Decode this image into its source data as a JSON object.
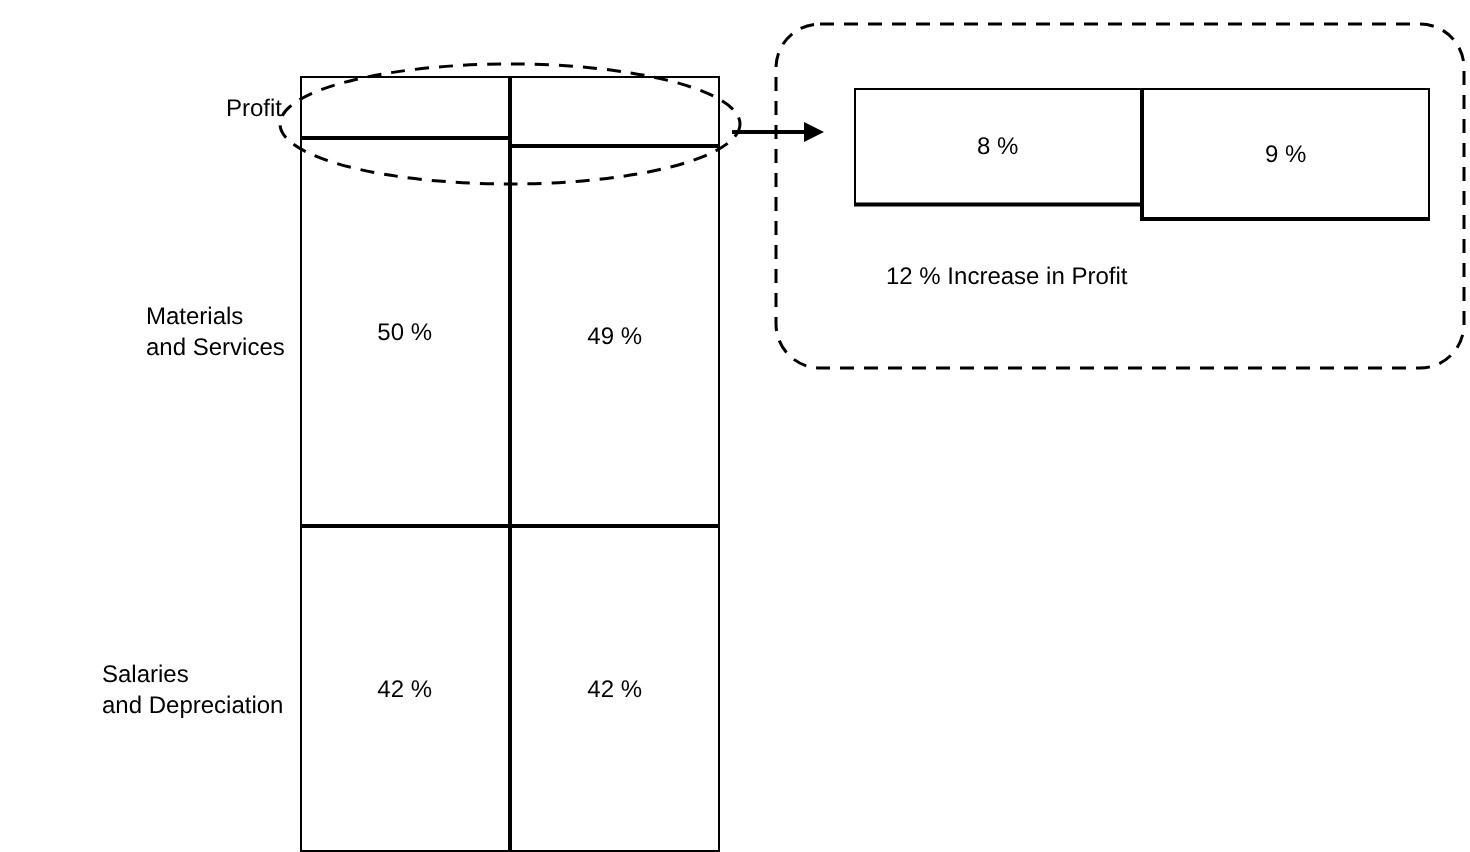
{
  "chart_data": [
    {
      "type": "bar",
      "stacked": true,
      "categories": [
        null,
        null
      ],
      "ylim": [
        0,
        100
      ],
      "tick_labels": false,
      "legend": false,
      "series": [
        {
          "name": "Salaries\nand Depreciation",
          "color": "#ffffff",
          "values": [
            42,
            42
          ],
          "value_labels": [
            "42 %",
            "42 %"
          ]
        },
        {
          "name": "Materials\nand Services",
          "color": "#ffffff",
          "values": [
            50,
            49
          ],
          "value_labels": [
            "50 %",
            "49 %"
          ]
        },
        {
          "name": "Profit",
          "color": "#ffffff",
          "values": [
            8,
            9
          ],
          "value_labels": [
            null,
            null
          ]
        }
      ]
    },
    {
      "type": "other",
      "categories": [
        null,
        null
      ],
      "values": [
        8,
        9
      ],
      "color": "#ffffff",
      "value_labels": [
        "8 %",
        "9 %"
      ],
      "legend": false,
      "annotations": [
        "12 % Increase in Profit"
      ]
    }
  ]
}
